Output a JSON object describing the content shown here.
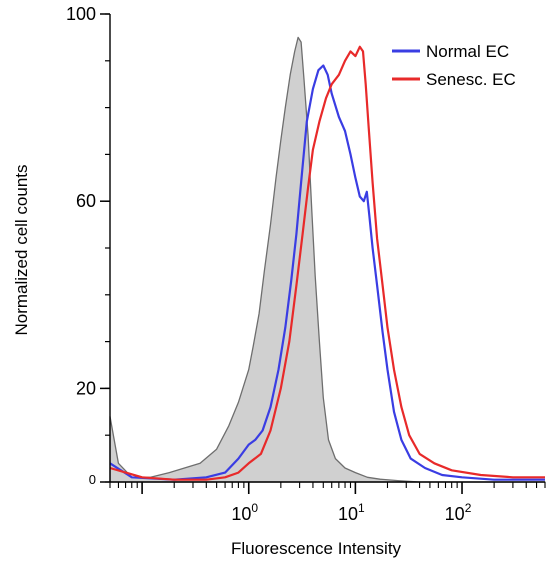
{
  "chart_data": {
    "type": "area",
    "title": "",
    "xlabel": "Fluorescence Intensity",
    "ylabel": "Normalized cell counts",
    "x_scale": "log",
    "xlim": [
      0.05,
      600
    ],
    "ylim": [
      0,
      100
    ],
    "grid": false,
    "legend_position": "top-right",
    "x_ticks": [
      {
        "value": 1,
        "base": "10",
        "exp": "0"
      },
      {
        "value": 10,
        "base": "10",
        "exp": "1"
      },
      {
        "value": 100,
        "base": "10",
        "exp": "2"
      }
    ],
    "y_ticks": [
      {
        "value": 0,
        "label": "0"
      },
      {
        "value": 20,
        "label": "20"
      },
      {
        "value": 60,
        "label": "60"
      },
      {
        "value": 100,
        "label": "100"
      }
    ],
    "control": {
      "color": "#d0d0d0",
      "edge_color": "#6e6e6e",
      "points": [
        [
          0.05,
          14
        ],
        [
          0.06,
          4
        ],
        [
          0.08,
          1
        ],
        [
          0.12,
          1
        ],
        [
          0.18,
          2
        ],
        [
          0.25,
          3
        ],
        [
          0.35,
          4
        ],
        [
          0.5,
          7
        ],
        [
          0.65,
          12
        ],
        [
          0.8,
          17
        ],
        [
          1.0,
          24
        ],
        [
          1.1,
          29
        ],
        [
          1.25,
          36
        ],
        [
          1.4,
          45
        ],
        [
          1.6,
          55
        ],
        [
          1.8,
          65
        ],
        [
          2.0,
          73
        ],
        [
          2.2,
          80
        ],
        [
          2.45,
          87
        ],
        [
          2.7,
          92
        ],
        [
          2.9,
          95
        ],
        [
          3.1,
          94
        ],
        [
          3.3,
          86
        ],
        [
          3.6,
          74
        ],
        [
          3.9,
          58
        ],
        [
          4.2,
          44
        ],
        [
          4.6,
          30
        ],
        [
          5.0,
          18
        ],
        [
          5.6,
          9
        ],
        [
          6.5,
          5
        ],
        [
          8,
          3
        ],
        [
          10,
          2
        ],
        [
          13,
          1
        ],
        [
          17,
          0.6
        ],
        [
          25,
          0.3
        ],
        [
          40,
          0
        ],
        [
          600,
          0
        ]
      ]
    },
    "series": [
      {
        "name": "Normal EC",
        "color": "#3a3de3",
        "points": [
          [
            0.05,
            4
          ],
          [
            0.08,
            1
          ],
          [
            0.2,
            0.5
          ],
          [
            0.4,
            1
          ],
          [
            0.6,
            2
          ],
          [
            0.8,
            5
          ],
          [
            1.0,
            8
          ],
          [
            1.15,
            9
          ],
          [
            1.35,
            11
          ],
          [
            1.6,
            16
          ],
          [
            1.9,
            24
          ],
          [
            2.2,
            33
          ],
          [
            2.5,
            43
          ],
          [
            2.8,
            53
          ],
          [
            3.1,
            64
          ],
          [
            3.5,
            77
          ],
          [
            4.0,
            84
          ],
          [
            4.5,
            88
          ],
          [
            5.0,
            89
          ],
          [
            5.5,
            87
          ],
          [
            6.0,
            83
          ],
          [
            7.0,
            78
          ],
          [
            8.0,
            75
          ],
          [
            9.0,
            70
          ],
          [
            10,
            65
          ],
          [
            11,
            61
          ],
          [
            12,
            60
          ],
          [
            12.8,
            62
          ],
          [
            13.5,
            57
          ],
          [
            14.5,
            50
          ],
          [
            16,
            42
          ],
          [
            18,
            32
          ],
          [
            20,
            24
          ],
          [
            23,
            15
          ],
          [
            27,
            9
          ],
          [
            33,
            5
          ],
          [
            45,
            3
          ],
          [
            65,
            1.5
          ],
          [
            100,
            1
          ],
          [
            200,
            0.5
          ],
          [
            600,
            0.5
          ]
        ]
      },
      {
        "name": "Senesc. EC",
        "color": "#e82a2a",
        "points": [
          [
            0.05,
            3
          ],
          [
            0.1,
            1
          ],
          [
            0.2,
            0.5
          ],
          [
            0.4,
            0.5
          ],
          [
            0.6,
            1
          ],
          [
            0.8,
            2
          ],
          [
            1.0,
            4
          ],
          [
            1.3,
            6
          ],
          [
            1.6,
            11
          ],
          [
            2.0,
            20
          ],
          [
            2.4,
            30
          ],
          [
            2.8,
            42
          ],
          [
            3.2,
            53
          ],
          [
            3.6,
            63
          ],
          [
            4.0,
            71
          ],
          [
            4.6,
            77
          ],
          [
            5.3,
            82
          ],
          [
            6.0,
            85
          ],
          [
            7.0,
            87
          ],
          [
            8.0,
            90
          ],
          [
            9.0,
            92
          ],
          [
            10,
            91
          ],
          [
            11,
            93
          ],
          [
            11.8,
            92
          ],
          [
            12.5,
            85
          ],
          [
            13.3,
            76
          ],
          [
            14.5,
            64
          ],
          [
            16,
            52
          ],
          [
            18,
            42
          ],
          [
            20,
            33
          ],
          [
            23,
            24
          ],
          [
            27,
            16
          ],
          [
            32,
            10
          ],
          [
            40,
            6
          ],
          [
            55,
            4
          ],
          [
            80,
            2.5
          ],
          [
            150,
            1.5
          ],
          [
            300,
            1
          ],
          [
            600,
            1
          ]
        ]
      }
    ]
  }
}
